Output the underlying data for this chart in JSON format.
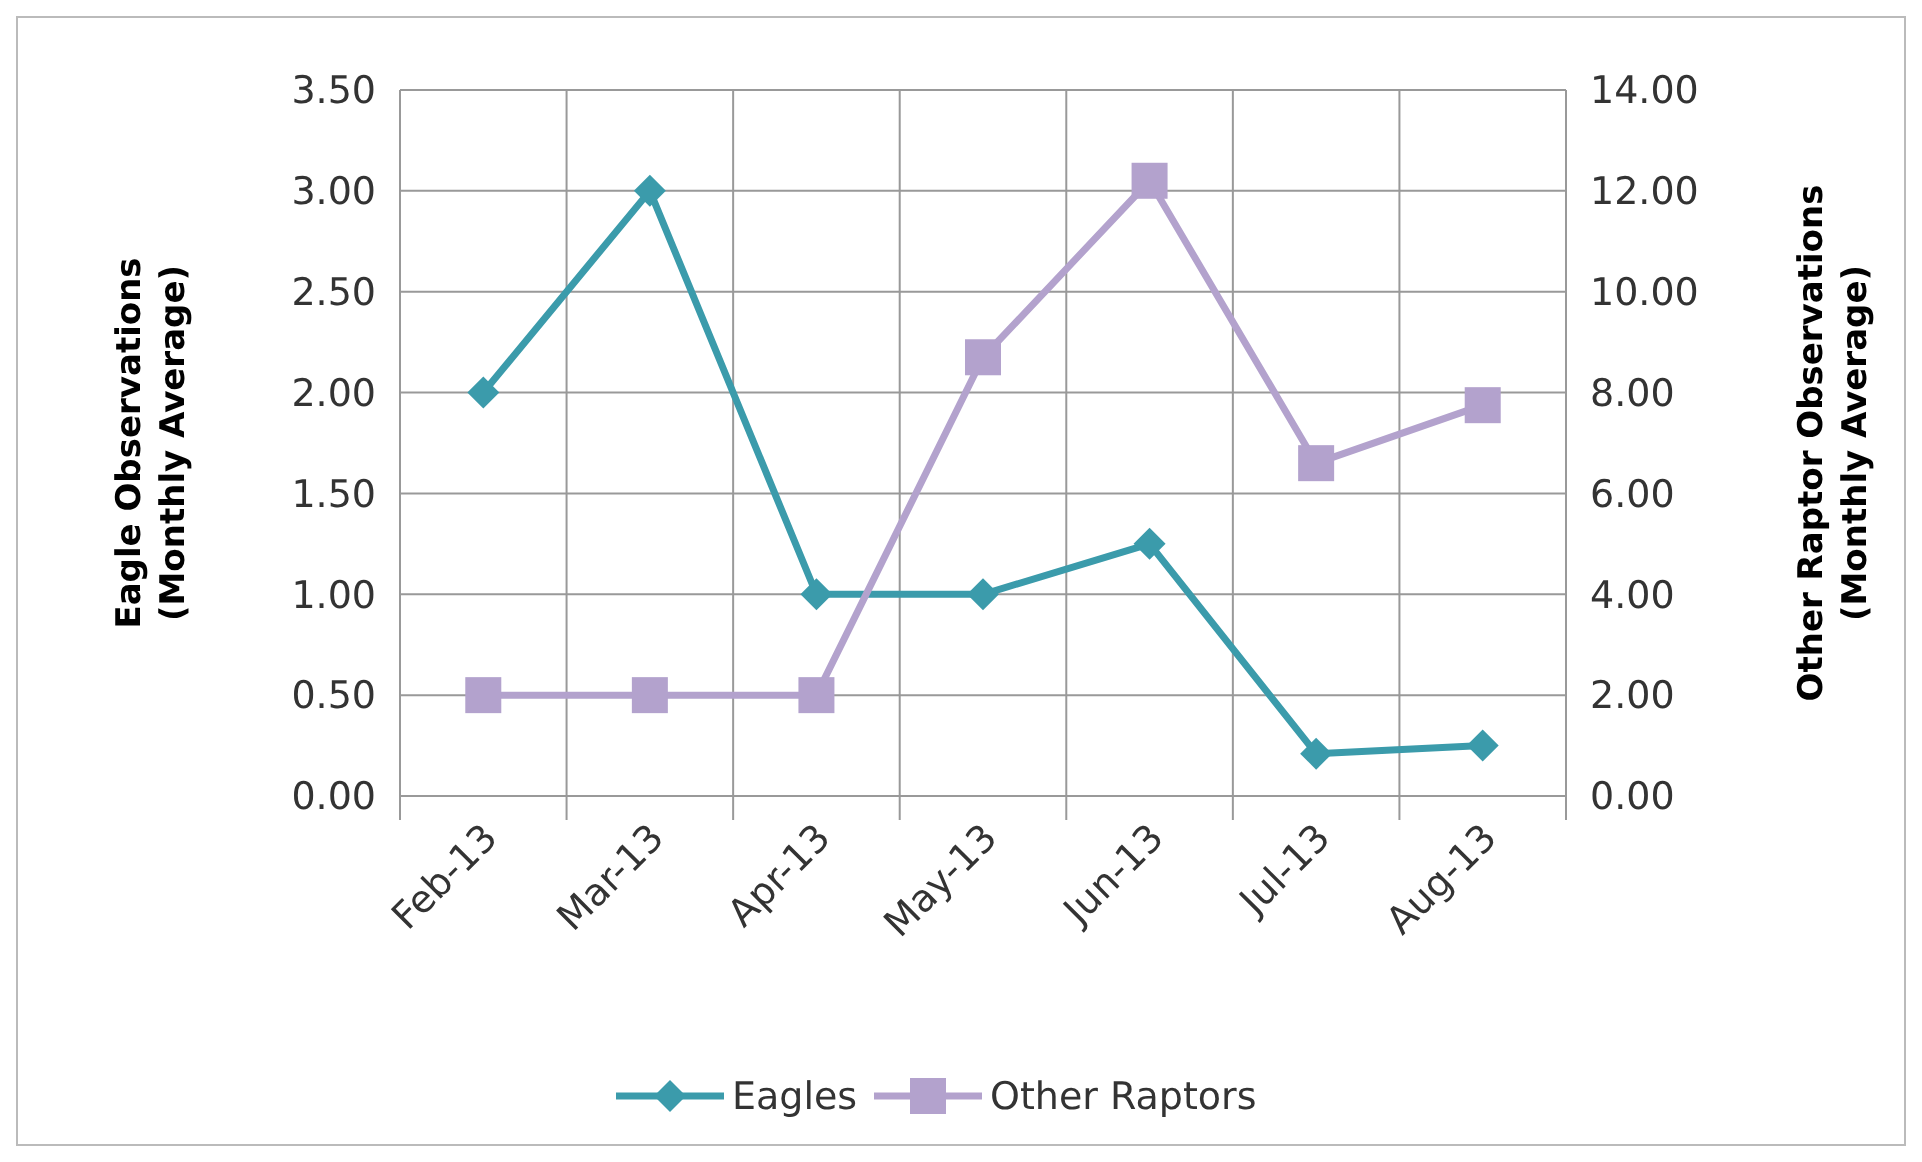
{
  "chart_data": {
    "type": "line",
    "categories": [
      "Feb-13",
      "Mar-13",
      "Apr-13",
      "May-13",
      "Jun-13",
      "Jul-13",
      "Aug-13"
    ],
    "ylabel": "Eagle Observations\n(Monthly Average)",
    "y2label": "Other Raptor Observations\n(Monthly Average)",
    "series": [
      {
        "name": "Eagles",
        "color": "#3b9bab",
        "marker": "diamond",
        "values": [
          2.0,
          3.0,
          1.0,
          1.0,
          1.25,
          0.21,
          0.25
        ]
      },
      {
        "name": "Other Raptors",
        "color": "#b3a2cd",
        "marker": "square",
        "axis": "y2",
        "values": [
          2.0,
          2.0,
          2.0,
          8.7,
          12.2,
          6.6,
          7.75
        ]
      }
    ],
    "ylim": [
      0,
      3.5
    ],
    "yticks": [
      {
        "value": 0,
        "label": "0.00"
      },
      {
        "value": 0.5,
        "label": "0.50"
      },
      {
        "value": 1,
        "label": "1.00"
      },
      {
        "value": 1.5,
        "label": "1.50"
      },
      {
        "value": 2,
        "label": "2.00"
      },
      {
        "value": 2.5,
        "label": "2.50"
      },
      {
        "value": 3,
        "label": "3.00"
      },
      {
        "value": 3.5,
        "label": "3.50"
      }
    ],
    "y2lim": [
      0,
      14
    ],
    "y2ticks": [
      {
        "value": 0,
        "label": "0.00"
      },
      {
        "value": 2,
        "label": "2.00"
      },
      {
        "value": 4,
        "label": "4.00"
      },
      {
        "value": 6,
        "label": "6.00"
      },
      {
        "value": 8,
        "label": "8.00"
      },
      {
        "value": 10,
        "label": "10.00"
      },
      {
        "value": 12,
        "label": "12.00"
      },
      {
        "value": 14,
        "label": "14.00"
      }
    ],
    "grid": true,
    "legend": "bottom",
    "line_style": "solid"
  }
}
